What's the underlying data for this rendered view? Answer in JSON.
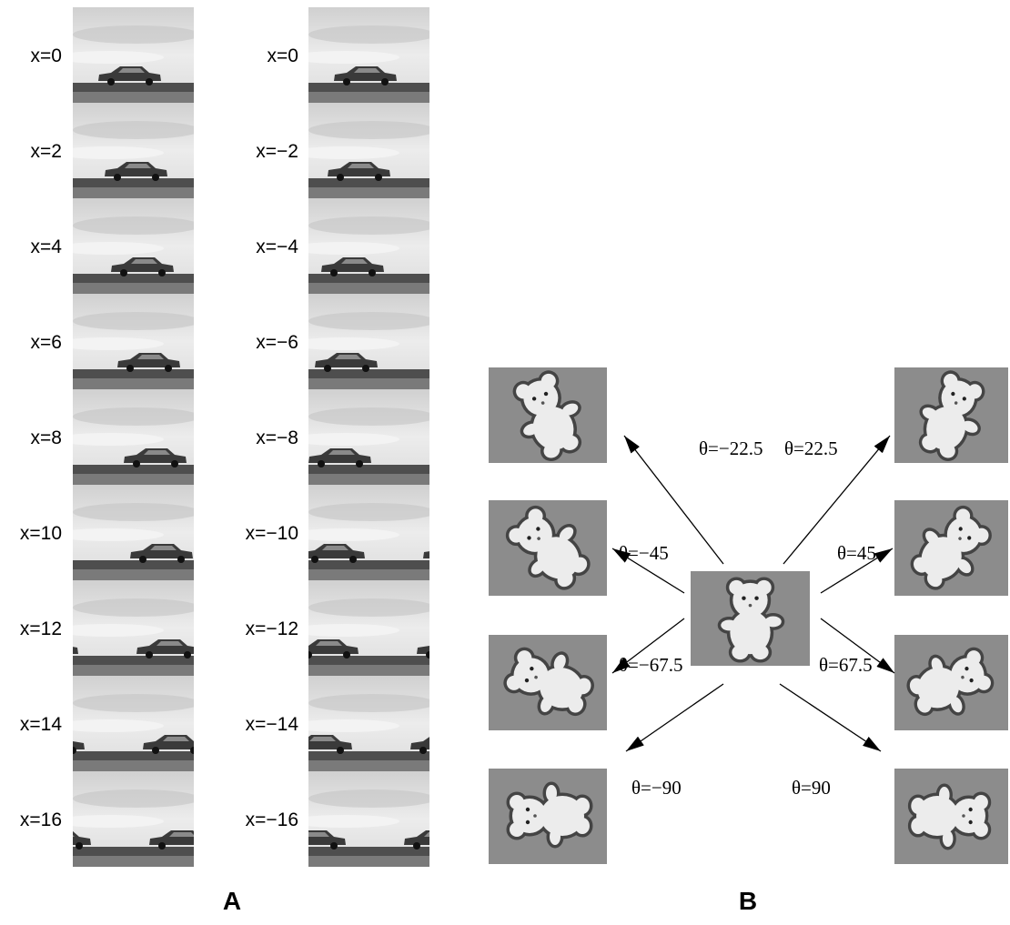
{
  "panel_a": {
    "label": "A",
    "left_column": [
      "x=0",
      "x=2",
      "x=4",
      "x=6",
      "x=8",
      "x=10",
      "x=12",
      "x=14",
      "x=16"
    ],
    "right_column": [
      "x=0",
      "x=−2",
      "x=−4",
      "x=−6",
      "x=−8",
      "x=−10",
      "x=−12",
      "x=−14",
      "x=−16"
    ]
  },
  "panel_b": {
    "label": "B",
    "left_labels": [
      "θ=−22.5",
      "θ=−45",
      "θ=−67.5",
      "θ=−90"
    ],
    "right_labels": [
      "θ=22.5",
      "θ=45",
      "θ=67.5",
      "θ=90"
    ]
  }
}
